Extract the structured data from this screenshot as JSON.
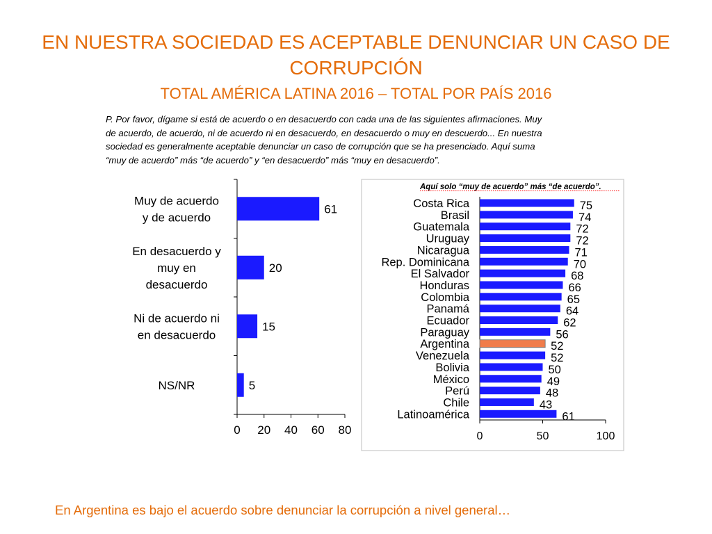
{
  "slide": {
    "title": "EN NUESTRA SOCIEDAD ES ACEPTABLE DENUNCIAR UN CASO DE CORRUPCIÓN",
    "subtitle": "TOTAL AMÉRICA LATINA 2016 – TOTAL POR PAÍS 2016",
    "question": "P. Por favor, dígame si está de acuerdo o en desacuerdo con cada una de las siguientes afirmaciones. Muy de acuerdo, de acuerdo, ni de acuerdo ni en desacuerdo, en desacuerdo o muy en descuerdo... En nuestra sociedad es generalmente aceptable denunciar un caso de corrupción que se ha presenciado. Aquí suma “muy de acuerdo” más “de acuerdo” y “en desacuerdo” más “muy en desacuerdo”.",
    "footer": "En Argentina es bajo el acuerdo sobre denunciar la corrupción a nivel general…"
  },
  "colors": {
    "title": "#e46c0a",
    "bar": "#1a1aff",
    "highlight": "#f07c4a"
  },
  "chart_data": [
    {
      "type": "bar",
      "orientation": "horizontal",
      "title": "",
      "categories": [
        [
          "Muy de acuerdo",
          "y de acuerdo"
        ],
        [
          "En desacuerdo y",
          "muy en",
          "desacuerdo"
        ],
        [
          "Ni de acuerdo ni",
          "en desacuerdo"
        ],
        [
          "NS/NR"
        ]
      ],
      "values": [
        61,
        20,
        15,
        5
      ],
      "xlim": [
        0,
        80
      ],
      "xticks": [
        0,
        20,
        40,
        60,
        80
      ],
      "grid": false
    },
    {
      "type": "bar",
      "orientation": "horizontal",
      "title": "Aquí solo “muy de acuerdo” más “de acuerdo”.",
      "categories": [
        "Costa Rica",
        "Brasil",
        "Guatemala",
        "Uruguay",
        "Nicaragua",
        "Rep. Dominicana",
        "El Salvador",
        "Honduras",
        "Colombia",
        "Panamá",
        "Ecuador",
        "Paraguay",
        "Argentina",
        "Venezuela",
        "Bolivia",
        "México",
        "Perú",
        "Chile",
        "Latinoamérica"
      ],
      "values": [
        75,
        74,
        72,
        72,
        71,
        70,
        68,
        66,
        65,
        64,
        62,
        56,
        52,
        52,
        50,
        49,
        48,
        43,
        61
      ],
      "highlight": "Argentina",
      "xlim": [
        0,
        100
      ],
      "xticks": [
        0,
        50,
        100
      ],
      "grid": false
    }
  ]
}
